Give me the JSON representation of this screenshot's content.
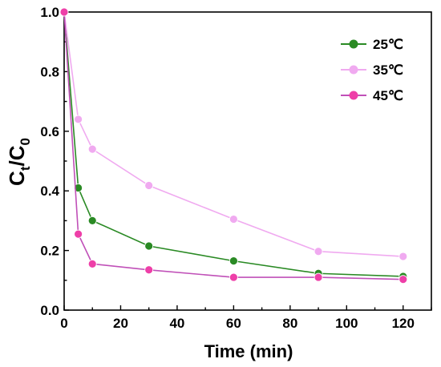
{
  "chart_data": {
    "type": "line",
    "title": "",
    "xlabel": "Time (min)",
    "ylabel": {
      "base": "C",
      "sub1": "t",
      "sep": "/C",
      "sub2": "0"
    },
    "xlim": [
      0,
      130
    ],
    "ylim": [
      0,
      1.0
    ],
    "xticks": [
      0,
      20,
      40,
      60,
      80,
      100,
      120
    ],
    "yticks": [
      0.0,
      0.2,
      0.4,
      0.6,
      0.8,
      1.0
    ],
    "ytick_labels": [
      "0.0",
      "0.2",
      "0.4",
      "0.6",
      "0.8",
      "1.0"
    ],
    "grid": false,
    "legend_position": "top-right",
    "x": [
      0,
      5,
      10,
      30,
      60,
      90,
      120
    ],
    "series": [
      {
        "name": "25℃",
        "color": "#2a8a24",
        "values": [
          1.0,
          0.41,
          0.3,
          0.215,
          0.165,
          0.123,
          0.113
        ]
      },
      {
        "name": "35℃",
        "color": "#f0aaf0",
        "values": [
          1.0,
          0.64,
          0.54,
          0.418,
          0.305,
          0.197,
          0.18
        ]
      },
      {
        "name": "45℃",
        "color": "#c050b8",
        "marker_color": "#ee3fa8",
        "values": [
          1.0,
          0.255,
          0.155,
          0.135,
          0.11,
          0.11,
          0.103
        ]
      }
    ]
  }
}
